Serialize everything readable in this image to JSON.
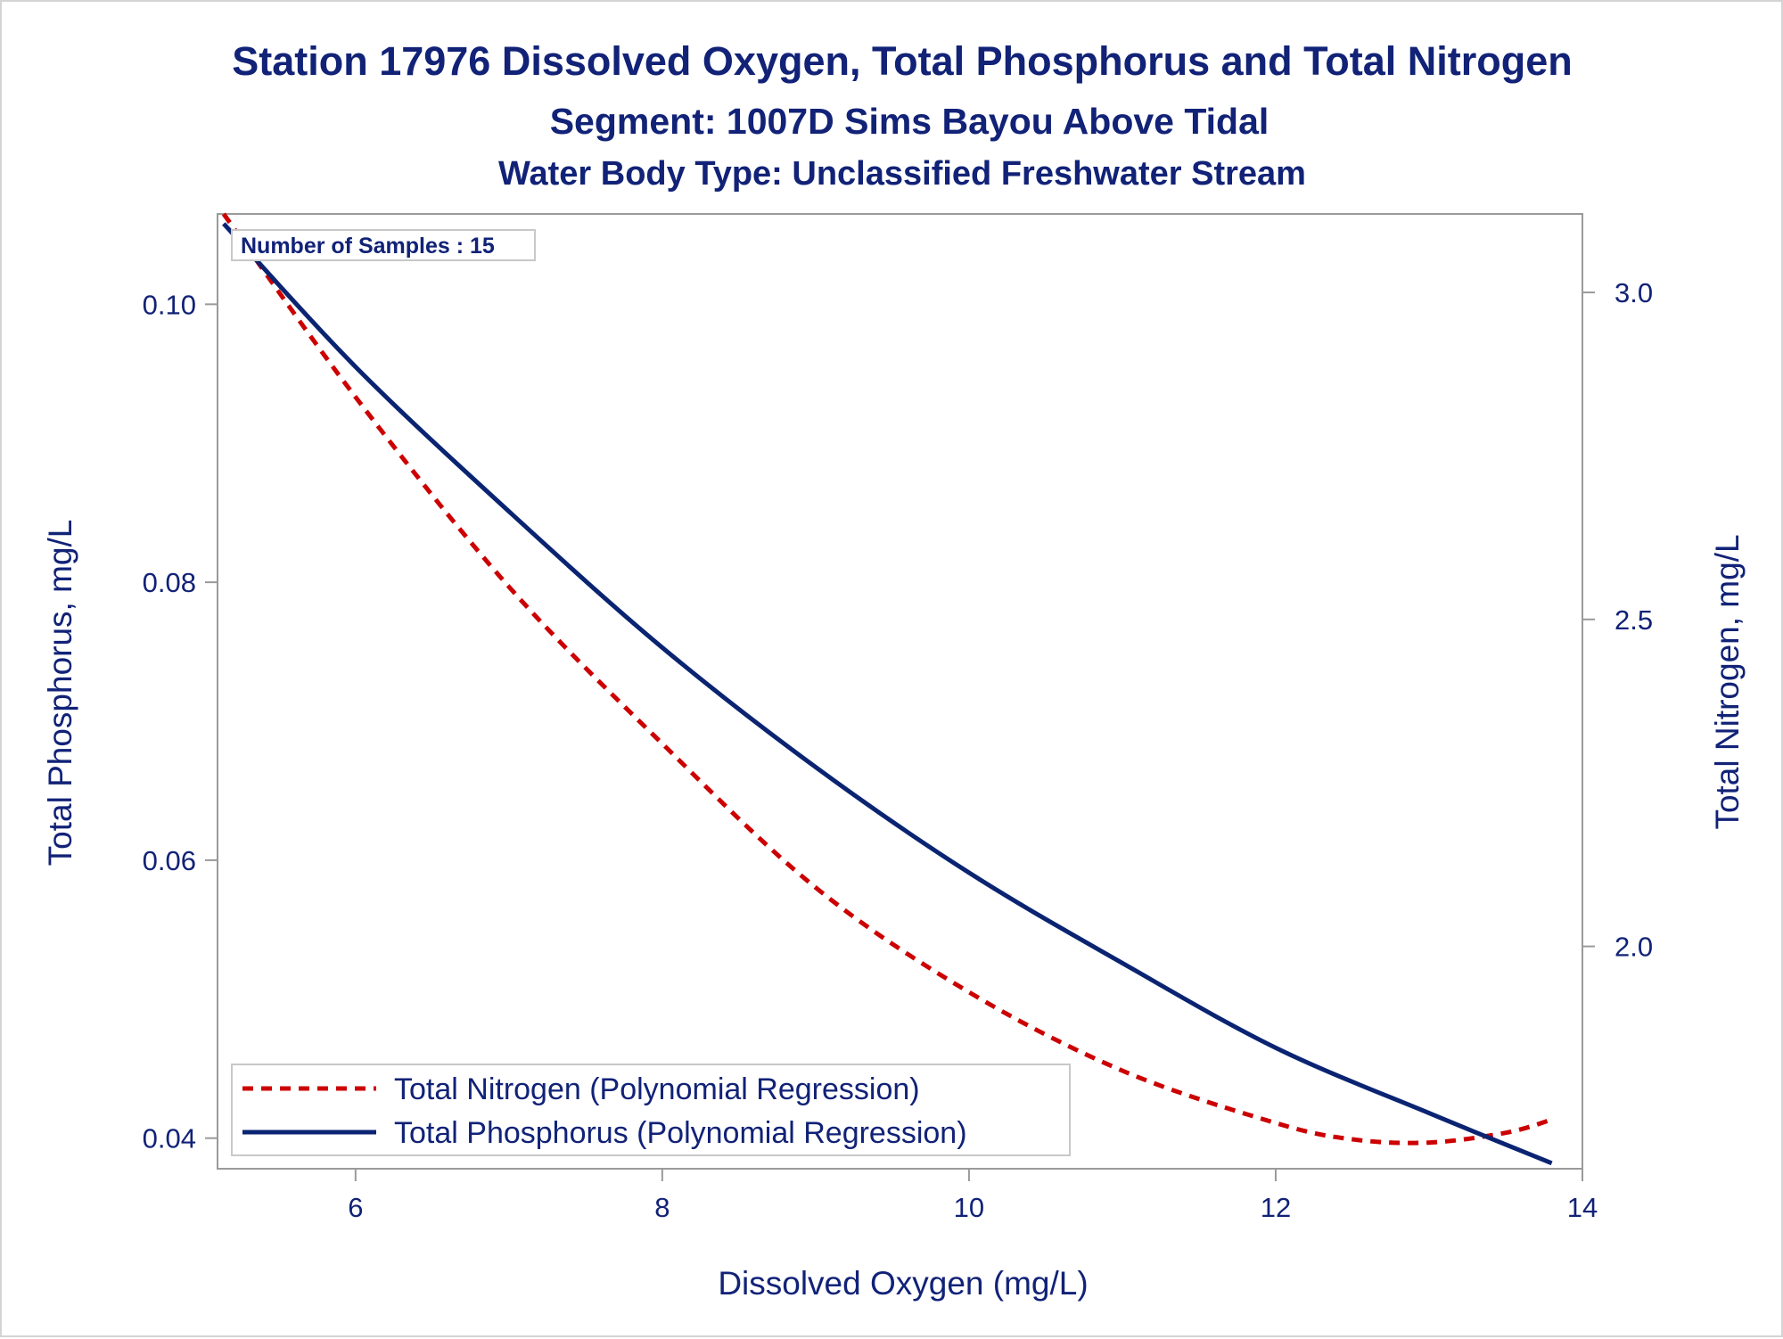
{
  "chart_data": {
    "type": "line",
    "title": "Station 17976  Dissolved Oxygen, Total Phosphorus and Total Nitrogen",
    "subtitle": "Segment: 1007D  Sims Bayou Above Tidal",
    "subtitle2": "Water Body Type: Unclassified Freshwater Stream",
    "xlabel": "Dissolved Oxygen (mg/L)",
    "ylabel_left": "Total Phosphorus, mg/L",
    "ylabel_right": "Total Nitrogen, mg/L",
    "xlim": [
      5.1,
      14.0
    ],
    "ylim_left": [
      0.0378,
      0.1065
    ],
    "ylim_right": [
      1.66,
      3.12
    ],
    "x_ticks": [
      "6",
      "8",
      "10",
      "12",
      "14"
    ],
    "y_left_ticks": [
      "0.04",
      "0.06",
      "0.08",
      "0.10"
    ],
    "y_right_ticks": [
      "2.0",
      "2.5",
      "3.0"
    ],
    "annotation": "Number of Samples : 15",
    "grid": false,
    "legend_position": "bottom-left (inside)",
    "series": [
      {
        "name": "Total Nitrogen (Polynomial Regression)",
        "axis": "right",
        "style": "dashed",
        "color": "#cc0000",
        "points": [
          [
            5.14,
            3.12
          ],
          [
            6.0,
            2.84
          ],
          [
            7.0,
            2.55
          ],
          [
            8.0,
            2.31
          ],
          [
            9.0,
            2.09
          ],
          [
            10.0,
            1.93
          ],
          [
            11.0,
            1.81
          ],
          [
            12.0,
            1.73
          ],
          [
            12.5,
            1.705
          ],
          [
            13.0,
            1.7
          ],
          [
            13.5,
            1.715
          ],
          [
            13.8,
            1.735
          ]
        ]
      },
      {
        "name": "Total Phosphorus (Polynomial Regression)",
        "axis": "left",
        "style": "solid",
        "color": "#0a2472",
        "points": [
          [
            5.14,
            0.1058
          ],
          [
            6.0,
            0.0955
          ],
          [
            7.0,
            0.0851
          ],
          [
            8.0,
            0.0753
          ],
          [
            9.0,
            0.0667
          ],
          [
            10.0,
            0.0591
          ],
          [
            11.0,
            0.0526
          ],
          [
            12.0,
            0.0465
          ],
          [
            13.0,
            0.0418
          ],
          [
            13.8,
            0.0382
          ]
        ]
      }
    ]
  }
}
